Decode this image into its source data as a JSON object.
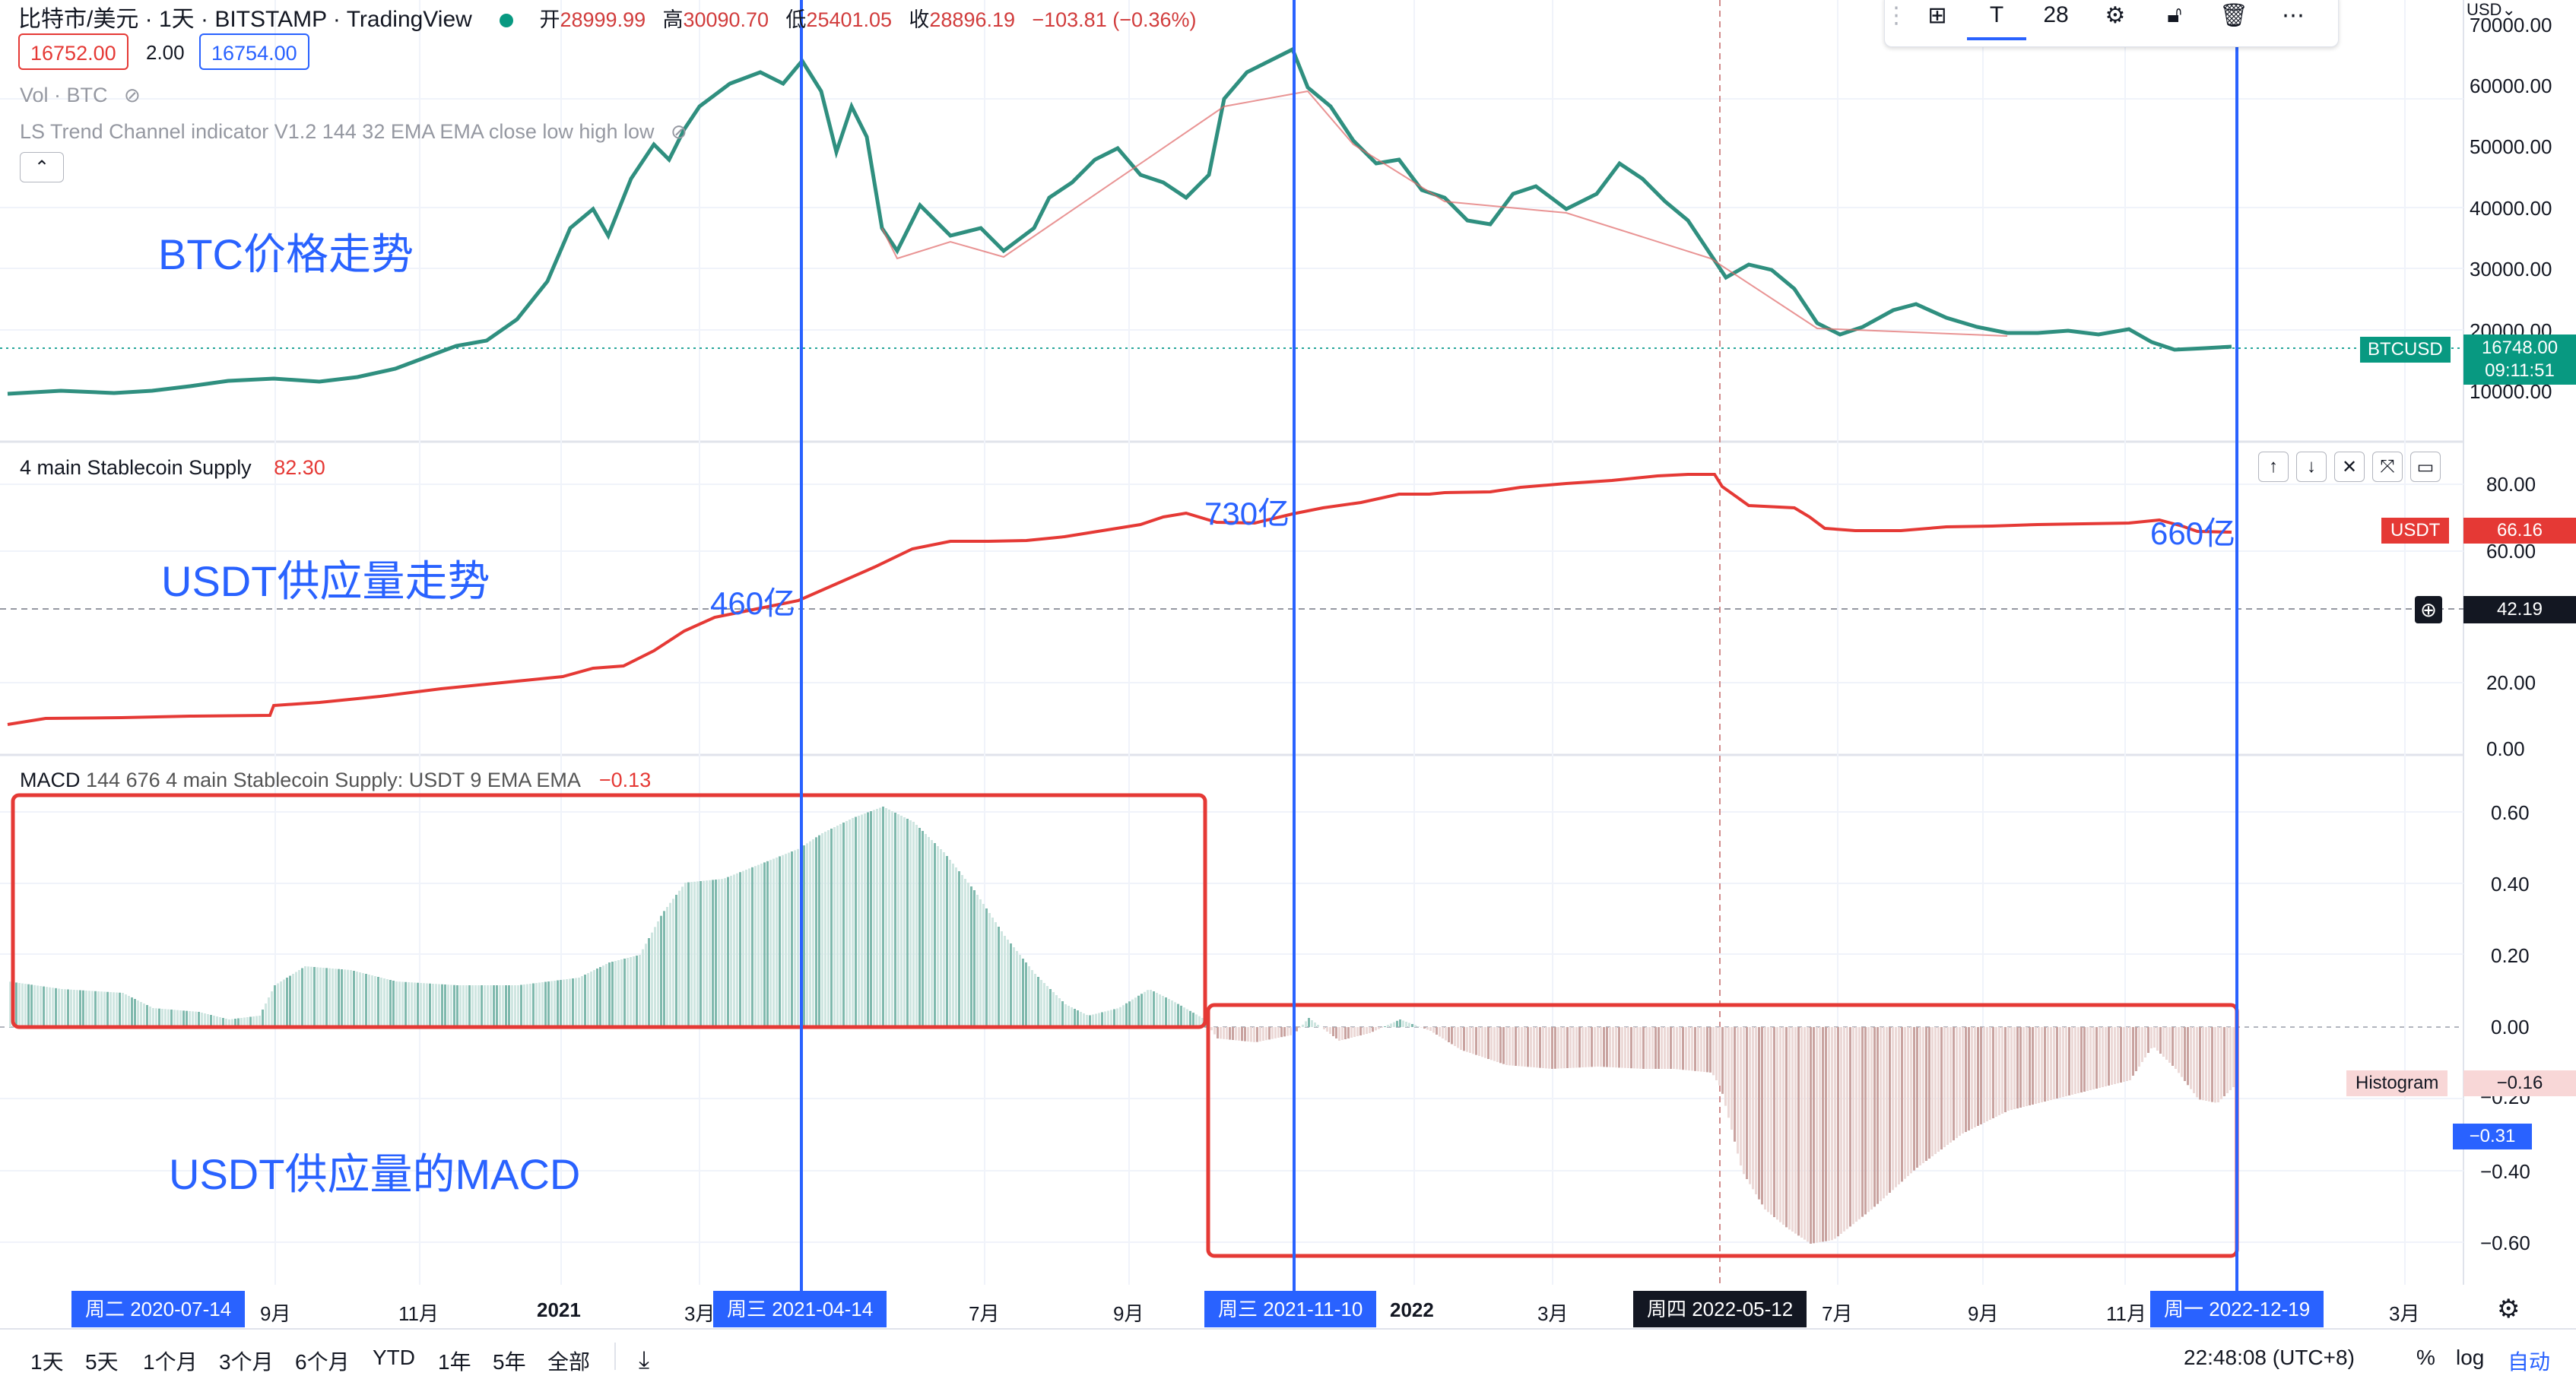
{
  "header": {
    "symbol": "比特市/美元 · 1天 · BITSTAMP · TradingView",
    "open_label": "开",
    "open": "28999.99",
    "high_label": "高",
    "high": "30090.70",
    "low_label": "低",
    "low": "25401.05",
    "close_label": "收",
    "close": "28896.19",
    "change": "−103.81 (−0.36%)",
    "sell_price": "16752.00",
    "spread": "2.00",
    "buy_price": "16754.00",
    "vol_label": "Vol · BTC",
    "ls_label": "LS Trend Channel indicator V1.2 144 32 EMA EMA close low high low"
  },
  "toolbar": {
    "font_size": "28"
  },
  "annotations": {
    "btc_trend": "BTC价格走势",
    "usdt_trend": "USDT供应量走势",
    "usdt_macd": "USDT供应量的MACD",
    "v460": "460亿",
    "v730": "730亿",
    "v660": "660亿"
  },
  "price_pane": {
    "currency": "USD",
    "ticks": [
      "70000.00",
      "60000.00",
      "50000.00",
      "40000.00",
      "30000.00",
      "20000.00",
      "10000.00"
    ],
    "symbol_badge": "BTCUSD",
    "last_price": "16748.00",
    "countdown": "09:11:51"
  },
  "supply_pane": {
    "title": "4 main Stablecoin Supply",
    "value": "82.30",
    "ticks": [
      "80.00",
      "60.00",
      "20.00",
      "0.00"
    ],
    "badge_label": "USDT",
    "badge_value": "66.16",
    "crosshair_value": "42.19"
  },
  "macd_pane": {
    "title": "MACD",
    "params": "144 676 4 main Stablecoin Supply: USDT 9 EMA EMA",
    "value": "−0.13",
    "ticks": [
      "0.60",
      "0.40",
      "0.20",
      "0.00",
      "−0.20",
      "−0.40",
      "−0.60"
    ],
    "histogram_label": "Histogram",
    "histogram_value": "−0.16",
    "macd_value": "−0.31"
  },
  "time_axis": {
    "labels": [
      "9月",
      "11月",
      "2021",
      "3月",
      "7月",
      "9月",
      "2022",
      "3月",
      "7月",
      "9月",
      "11月",
      "3月"
    ],
    "flag1": "周二 2020-07-14",
    "flag2": "周三 2021-04-14",
    "flag3": "周三 2021-11-10",
    "flag4": "周四 2022-05-12",
    "flag5": "周一 2022-12-19"
  },
  "bottom_bar": {
    "ranges": [
      "1天",
      "5天",
      "1个月",
      "3个月",
      "6个月",
      "YTD",
      "1年",
      "5年",
      "全部"
    ],
    "time": "22:48:08 (UTC+8)",
    "percent": "%",
    "log": "log",
    "auto": "自动"
  },
  "colors": {
    "accent": "#2962ff",
    "red": "#e53935",
    "green": "#26a69a",
    "teal": "#089981"
  }
}
